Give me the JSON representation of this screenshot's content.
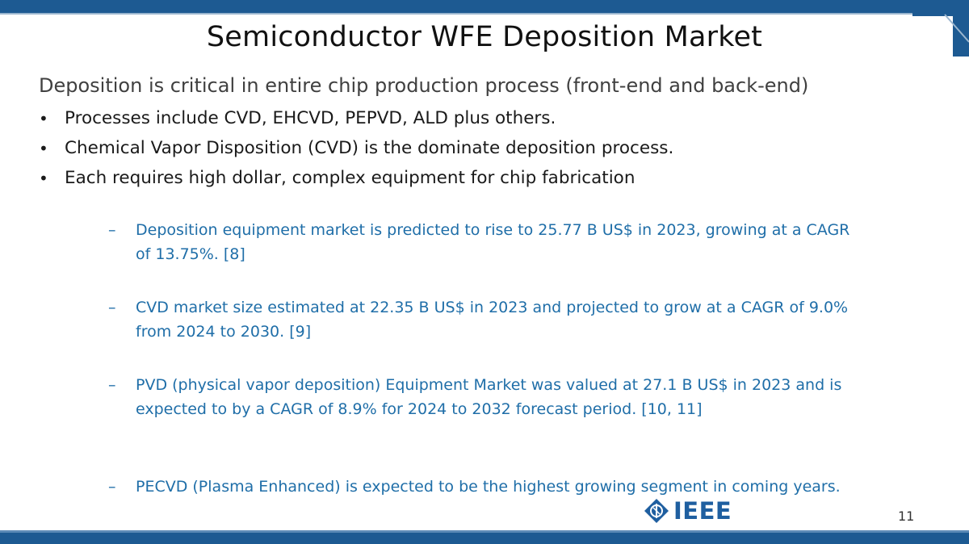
{
  "slide": {
    "title": "Semiconductor WFE Deposition Market",
    "intro": "Deposition is critical in entire chip production process (front-end and back-end)",
    "bullets": [
      "Processes include CVD, EHCVD, PEPVD, ALD plus others.",
      "Chemical Vapor Disposition (CVD) is the dominate deposition process.",
      "Each requires high dollar, complex equipment for chip fabrication"
    ],
    "bullet_symbol": "•",
    "sub_dash": "–",
    "sub_points": [
      "Deposition equipment market is predicted to rise to 25.77 B  US$ in 2023, growing at a CAGR of 13.75%. [8]",
      "CVD market size estimated at 22.35 B US$ in 2023 and projected to grow at a CAGR of 9.0% from 2024 to 2030. [9]",
      "PVD (physical vapor deposition) Equipment Market was valued at 27.1 B US$ in 2023 and is expected to by a CAGR of 8.9% for 2024 to 2032 forecast period.  [10, 11]",
      "PECVD (Plasma Enhanced) is expected to be the highest growing segment in coming years."
    ],
    "logo_text": "IEEE",
    "page_number": "11"
  },
  "colors": {
    "bar": "#1d5a92",
    "sub_text": "#1f6ea8",
    "logo": "#1f5fa0"
  }
}
